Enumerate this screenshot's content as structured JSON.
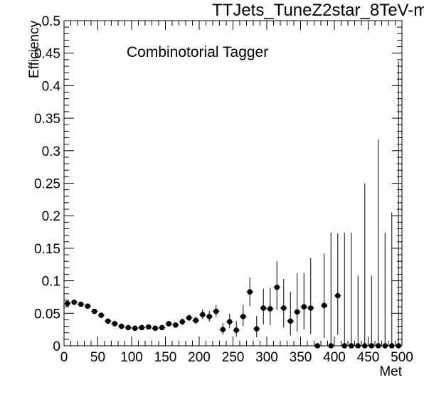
{
  "chart_data": {
    "type": "scatter",
    "title": "TTJets_TuneZ2star_8TeV-m",
    "annotation": "Combinotorial Tagger",
    "xlabel": "Met",
    "ylabel": "Efficiency",
    "xlim": [
      0,
      500
    ],
    "ylim": [
      0,
      0.5
    ],
    "xticks": [
      0,
      50,
      100,
      150,
      200,
      250,
      300,
      350,
      400,
      450,
      500
    ],
    "yticks": [
      0,
      0.05,
      0.1,
      0.15,
      0.2,
      0.25,
      0.3,
      0.35,
      0.4,
      0.45,
      0.5
    ],
    "xtick_labels": [
      "0",
      "50",
      "100",
      "150",
      "200",
      "250",
      "300",
      "350",
      "400",
      "450",
      "500"
    ],
    "ytick_labels": [
      "0",
      "0.05",
      "0.1",
      "0.15",
      "0.2",
      "0.25",
      "0.3",
      "0.35",
      "0.4",
      "0.45",
      "0.5"
    ],
    "grid": false,
    "marker_color": "#000000",
    "series": [
      {
        "x": [
          5,
          15,
          25,
          35,
          45,
          55,
          65,
          75,
          85,
          95,
          105,
          115,
          125,
          135,
          145,
          155,
          165,
          175,
          185,
          195,
          205,
          215,
          225,
          235,
          245,
          255,
          265,
          275,
          285,
          295,
          305,
          315,
          325,
          335,
          345,
          355,
          365,
          375,
          385,
          395,
          405,
          415,
          425,
          435,
          445,
          455,
          465,
          475,
          485,
          495
        ],
        "y": [
          0.065,
          0.067,
          0.064,
          0.061,
          0.053,
          0.047,
          0.038,
          0.034,
          0.03,
          0.028,
          0.027,
          0.028,
          0.029,
          0.027,
          0.028,
          0.034,
          0.032,
          0.037,
          0.043,
          0.039,
          0.048,
          0.045,
          0.053,
          0.025,
          0.037,
          0.024,
          0.045,
          0.083,
          0.026,
          0.058,
          0.057,
          0.09,
          0.058,
          0.038,
          0.052,
          0.06,
          0.058,
          0.0,
          0.062,
          0.0,
          0.077,
          0.0,
          0.0,
          0.0,
          0.0,
          0.0,
          0.0,
          0.0,
          0.0,
          0.0
        ],
        "err_low": [
          0.003,
          0.003,
          0.003,
          0.003,
          0.003,
          0.003,
          0.003,
          0.003,
          0.003,
          0.003,
          0.003,
          0.003,
          0.003,
          0.003,
          0.003,
          0.004,
          0.004,
          0.005,
          0.005,
          0.006,
          0.007,
          0.008,
          0.009,
          0.008,
          0.01,
          0.01,
          0.015,
          0.022,
          0.013,
          0.025,
          0.025,
          0.035,
          0.03,
          0.022,
          0.03,
          0.035,
          0.04,
          0.0,
          0.05,
          0.0,
          0.06,
          0.0,
          0.0,
          0.0,
          0.0,
          0.0,
          0.0,
          0.0,
          0.0,
          0.0
        ],
        "err_high": [
          0.003,
          0.003,
          0.003,
          0.003,
          0.003,
          0.003,
          0.003,
          0.003,
          0.003,
          0.003,
          0.003,
          0.003,
          0.003,
          0.003,
          0.003,
          0.004,
          0.004,
          0.005,
          0.005,
          0.006,
          0.008,
          0.009,
          0.01,
          0.01,
          0.012,
          0.014,
          0.018,
          0.022,
          0.02,
          0.03,
          0.032,
          0.04,
          0.045,
          0.045,
          0.06,
          0.052,
          0.077,
          0.0,
          0.08,
          0.174,
          0.096,
          0.174,
          0.174,
          0.108,
          0.25,
          0.108,
          0.317,
          0.174,
          0.205,
          0.437
        ]
      }
    ]
  }
}
